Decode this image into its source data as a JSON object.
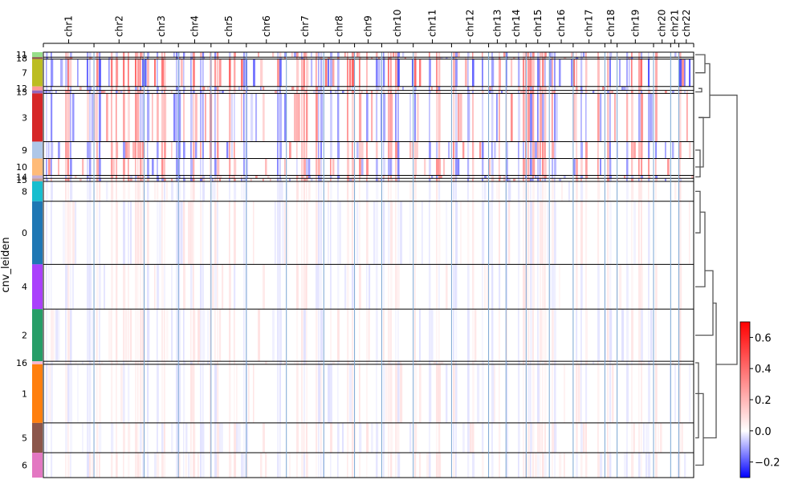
{
  "chart_data": {
    "type": "heatmap",
    "title": "",
    "ylabel": "cnv_leiden",
    "chromosomes": [
      "chr1",
      "chr2",
      "chr3",
      "chr4",
      "chr5",
      "chr6",
      "chr7",
      "chr8",
      "chr9",
      "chr10",
      "chr11",
      "chr12",
      "chr13",
      "chr14",
      "chr15",
      "chr16",
      "chr17",
      "chr18",
      "chr19",
      "chr20",
      "chr21",
      "chr22"
    ],
    "chromosome_gene_span": [
      0.0728,
      0.0721,
      0.0493,
      0.0469,
      0.0508,
      0.0576,
      0.0538,
      0.0442,
      0.0391,
      0.0453,
      0.0551,
      0.0533,
      0.025,
      0.029,
      0.0333,
      0.0343,
      0.0456,
      0.0176,
      0.0524,
      0.0246,
      0.0118,
      0.0213
    ],
    "clusters": [
      {
        "label": "11",
        "color": "#98df8a",
        "cell_fraction": 0.01
      },
      {
        "label": "18",
        "color": "#8c564b",
        "cell_fraction": 0.004
      },
      {
        "label": "7",
        "color": "#bcbd22",
        "cell_fraction": 0.055
      },
      {
        "label": "12",
        "color": "#ff9896",
        "cell_fraction": 0.008
      },
      {
        "label": "13",
        "color": "#9467bd",
        "cell_fraction": 0.006
      },
      {
        "label": "3",
        "color": "#d62728",
        "cell_fraction": 0.097
      },
      {
        "label": "9",
        "color": "#aec7e8",
        "cell_fraction": 0.034
      },
      {
        "label": "10",
        "color": "#ffbb78",
        "cell_fraction": 0.034
      },
      {
        "label": "14",
        "color": "#c5b0d5",
        "cell_fraction": 0.006
      },
      {
        "label": "15",
        "color": "#c49c94",
        "cell_fraction": 0.006
      },
      {
        "label": "8",
        "color": "#17becf",
        "cell_fraction": 0.04
      },
      {
        "label": "0",
        "color": "#1f77b4",
        "cell_fraction": 0.127
      },
      {
        "label": "4",
        "color": "#aa40fc",
        "cell_fraction": 0.09
      },
      {
        "label": "2",
        "color": "#279e68",
        "cell_fraction": 0.105
      },
      {
        "label": "16",
        "color": "#f7b6d2",
        "cell_fraction": 0.006
      },
      {
        "label": "1",
        "color": "#ff7f0e",
        "cell_fraction": 0.118
      },
      {
        "label": "5",
        "color": "#8c564b",
        "cell_fraction": 0.06
      },
      {
        "label": "6",
        "color": "#e377c2",
        "cell_fraction": 0.05
      }
    ],
    "colorbar": {
      "range": [
        -0.3,
        0.7
      ],
      "ticks": [
        0.6,
        0.4,
        0.2,
        0.0,
        -0.2
      ],
      "tick_labels": [
        "0.6",
        "0.4",
        "0.2",
        "0.0",
        "−0.2"
      ],
      "colors": [
        "#0000ff",
        "#ffffff",
        "#ff0000"
      ]
    },
    "dendrogram": "right",
    "grid": false
  }
}
